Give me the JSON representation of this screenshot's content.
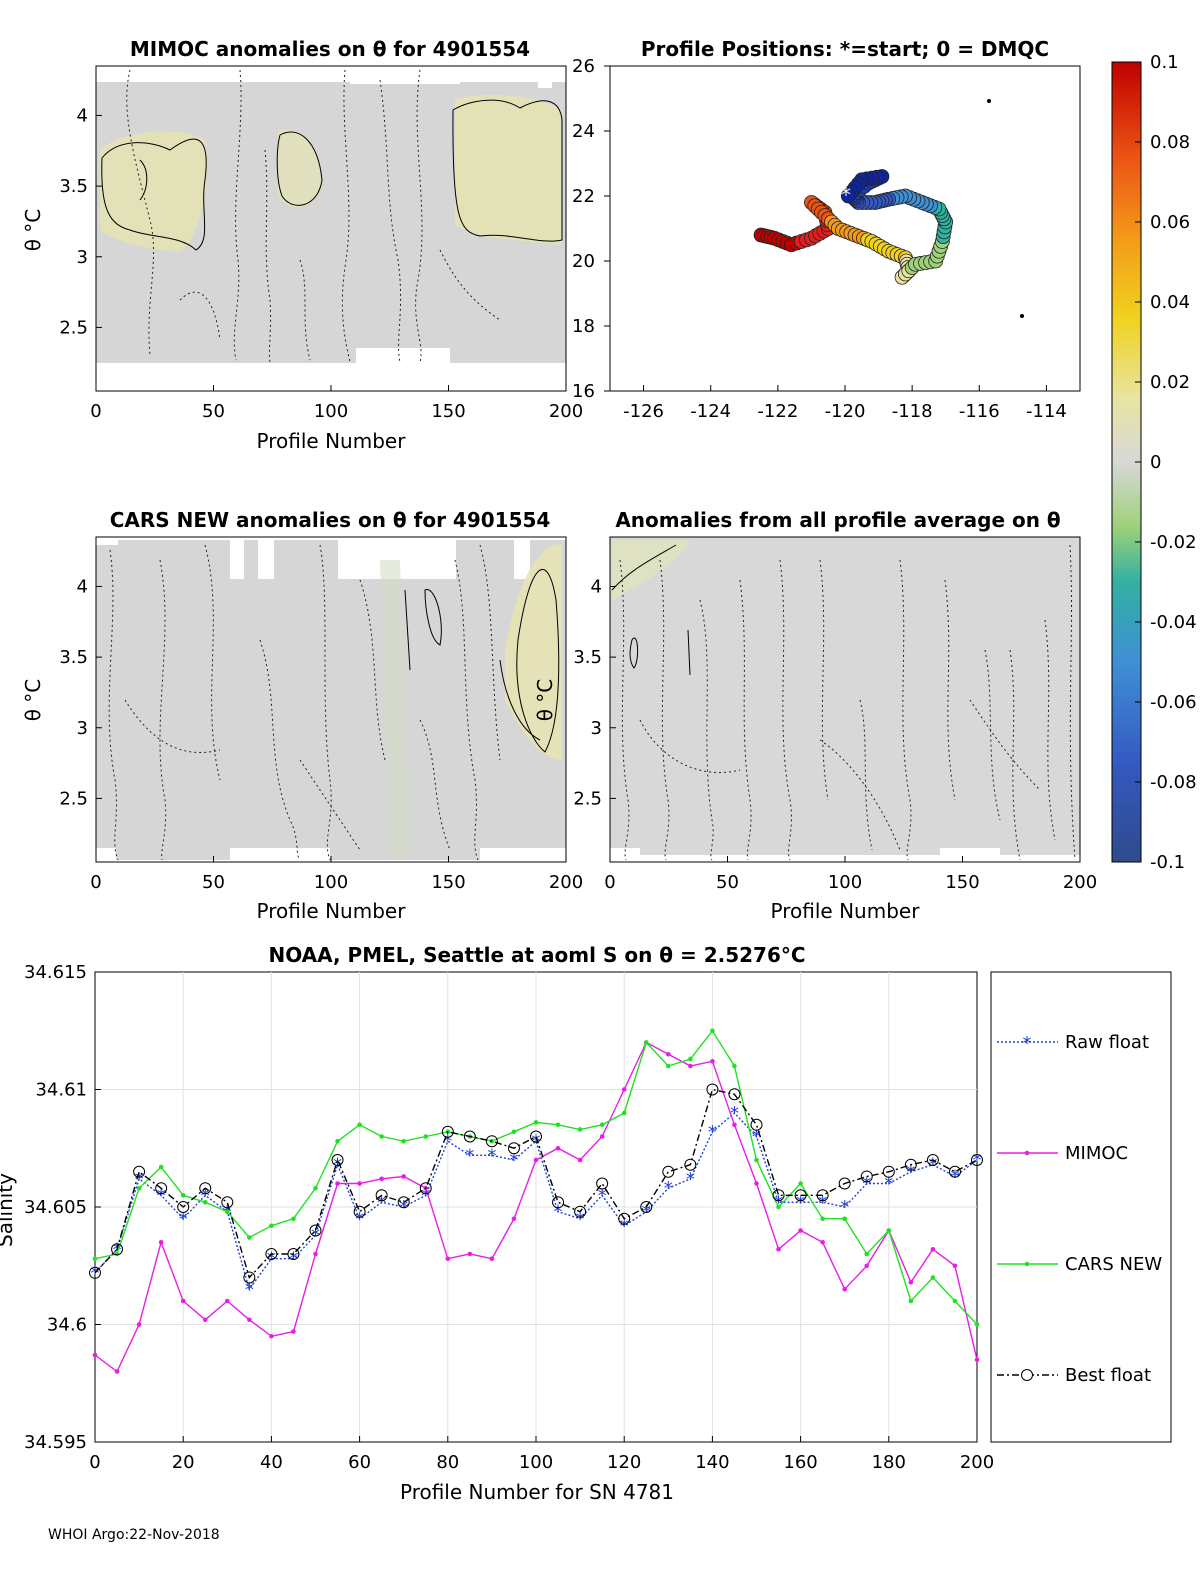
{
  "panels": {
    "mimoc": {
      "title": "MIMOC anomalies on θ  for 4901554",
      "ylabel": "θ °C",
      "xlabel": "Profile Number",
      "xticks": [
        "0",
        "50",
        "100",
        "150",
        "200"
      ],
      "yticks": [
        "4",
        "3.5",
        "3",
        "2.5"
      ]
    },
    "positions": {
      "title": "Profile Positions: *=start; 0 = DMQC",
      "xticks": [
        "-126",
        "-124",
        "-122",
        "-120",
        "-118",
        "-116",
        "-114"
      ],
      "yticks": [
        "26",
        "24",
        "22",
        "20",
        "18",
        "16"
      ]
    },
    "cars": {
      "title": "CARS NEW anomalies on θ for 4901554",
      "ylabel": "θ °C",
      "xlabel": "Profile Number",
      "xticks": [
        "0",
        "50",
        "100",
        "150",
        "200"
      ],
      "yticks": [
        "4",
        "3.5",
        "3",
        "2.5"
      ]
    },
    "allprof": {
      "title": "Anomalies from all profile average on θ",
      "ylabel": "θ °C",
      "xlabel": "Profile Number",
      "xticks": [
        "0",
        "50",
        "100",
        "150",
        "200"
      ],
      "yticks": [
        "4",
        "3.5",
        "3",
        "2.5"
      ]
    },
    "colorbar": {
      "ticks": [
        "0.1",
        "0.08",
        "0.06",
        "0.04",
        "0.02",
        "0",
        "-0.02",
        "-0.04",
        "-0.06",
        "-0.08",
        "-0.1"
      ]
    }
  },
  "footer": "WHOI Argo:22-Nov-2018",
  "chart_data": {
    "type": "line",
    "title": "NOAA, PMEL, Seattle at aoml S on θ = 2.5276°C",
    "xlabel": "Profile Number for SN 4781",
    "ylabel": "Salinity",
    "xlim": [
      0,
      200
    ],
    "ylim": [
      34.595,
      34.615
    ],
    "xticks": [
      "0",
      "20",
      "40",
      "60",
      "80",
      "100",
      "120",
      "140",
      "160",
      "180",
      "200"
    ],
    "yticks": [
      "34.615",
      "34.61",
      "34.605",
      "34.6",
      "34.595"
    ],
    "grid": true,
    "legend_position": "right",
    "x": [
      0,
      5,
      10,
      15,
      20,
      25,
      30,
      35,
      40,
      45,
      50,
      55,
      60,
      65,
      70,
      75,
      80,
      85,
      90,
      95,
      100,
      105,
      110,
      115,
      120,
      125,
      130,
      135,
      140,
      145,
      150,
      155,
      160,
      165,
      170,
      175,
      180,
      185,
      190,
      195,
      200
    ],
    "series": [
      {
        "name": "Raw float",
        "color": "#1f3fd8",
        "values": [
          34.6022,
          34.6032,
          34.6062,
          34.6055,
          34.6045,
          34.6055,
          34.6048,
          34.6015,
          34.6028,
          34.6028,
          34.6038,
          34.6068,
          34.6045,
          34.6052,
          34.605,
          34.6055,
          34.6078,
          34.6072,
          34.6072,
          34.607,
          34.6078,
          34.6048,
          34.6045,
          34.6055,
          34.6042,
          34.6048,
          34.6058,
          34.6062,
          34.6082,
          34.609,
          34.608,
          34.6052,
          34.6052,
          34.6052,
          34.605,
          34.606,
          34.606,
          34.6065,
          34.6068,
          34.6063,
          34.607
        ]
      },
      {
        "name": "MIMOC",
        "color": "#e81ee8",
        "values": [
          34.5987,
          34.598,
          34.6,
          34.6035,
          34.601,
          34.6002,
          34.601,
          34.6002,
          34.5995,
          34.5997,
          34.603,
          34.606,
          34.606,
          34.6062,
          34.6063,
          34.6058,
          34.6028,
          34.603,
          34.6028,
          34.6045,
          34.607,
          34.6075,
          34.607,
          34.608,
          34.61,
          34.612,
          34.6115,
          34.611,
          34.6112,
          34.6085,
          34.606,
          34.6032,
          34.604,
          34.6035,
          34.6015,
          34.6025,
          34.604,
          34.6018,
          34.6032,
          34.6025,
          34.5985
        ]
      },
      {
        "name": "CARS NEW",
        "color": "#22e022",
        "values": [
          34.6028,
          34.603,
          34.6058,
          34.6067,
          34.6055,
          34.6052,
          34.6048,
          34.6037,
          34.6042,
          34.6045,
          34.6058,
          34.6078,
          34.6085,
          34.608,
          34.6078,
          34.608,
          34.6082,
          34.608,
          34.6078,
          34.6082,
          34.6086,
          34.6085,
          34.6083,
          34.6085,
          34.609,
          34.612,
          34.611,
          34.6113,
          34.6125,
          34.611,
          34.607,
          34.605,
          34.606,
          34.6045,
          34.6045,
          34.603,
          34.604,
          34.601,
          34.602,
          34.601,
          34.6
        ]
      },
      {
        "name": "Best float",
        "color": "#000000",
        "values": [
          34.6022,
          34.6032,
          34.6065,
          34.6058,
          34.605,
          34.6058,
          34.6052,
          34.602,
          34.603,
          34.603,
          34.604,
          34.607,
          34.6048,
          34.6055,
          34.6052,
          34.6058,
          34.6082,
          34.608,
          34.6078,
          34.6075,
          34.608,
          34.6052,
          34.6048,
          34.606,
          34.6045,
          34.605,
          34.6065,
          34.6068,
          34.61,
          34.6098,
          34.6085,
          34.6055,
          34.6055,
          34.6055,
          34.606,
          34.6063,
          34.6065,
          34.6068,
          34.607,
          34.6065,
          34.607
        ]
      }
    ]
  }
}
